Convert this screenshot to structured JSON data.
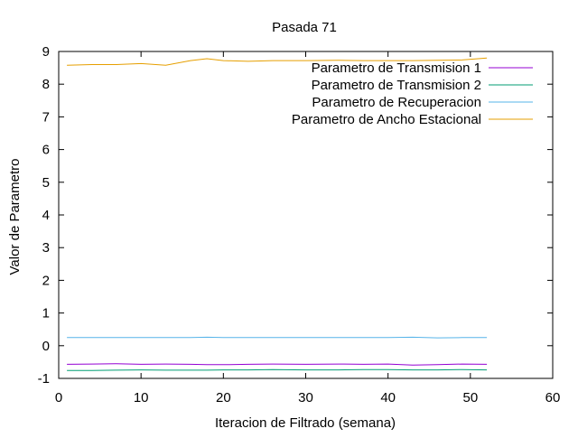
{
  "chart_data": {
    "type": "line",
    "title": "Pasada 71",
    "xlabel": "Iteracion de Filtrado (semana)",
    "ylabel": "Valor de Parametro",
    "xlim": [
      0,
      60
    ],
    "ylim": [
      -1,
      9
    ],
    "xticks": [
      0,
      10,
      20,
      30,
      40,
      50,
      60
    ],
    "yticks": [
      -1,
      0,
      1,
      2,
      3,
      4,
      5,
      6,
      7,
      8,
      9
    ],
    "grid": false,
    "legend_position": "top-right",
    "x": [
      1,
      4,
      7,
      10,
      13,
      16,
      18,
      20,
      23,
      26,
      30,
      34,
      37,
      40,
      43,
      46,
      49,
      52
    ],
    "series": [
      {
        "name": "Parametro de Transmision 1",
        "color": "#9400d3",
        "values": [
          -0.57,
          -0.56,
          -0.55,
          -0.57,
          -0.56,
          -0.57,
          -0.58,
          -0.58,
          -0.57,
          -0.56,
          -0.57,
          -0.56,
          -0.57,
          -0.56,
          -0.59,
          -0.58,
          -0.56,
          -0.57
        ]
      },
      {
        "name": "Parametro de Transmision 2",
        "color": "#009e73",
        "values": [
          -0.76,
          -0.76,
          -0.75,
          -0.74,
          -0.75,
          -0.75,
          -0.75,
          -0.74,
          -0.74,
          -0.73,
          -0.74,
          -0.74,
          -0.73,
          -0.73,
          -0.74,
          -0.74,
          -0.73,
          -0.74
        ]
      },
      {
        "name": "Parametro de Recuperacion",
        "color": "#56b4e9",
        "values": [
          0.25,
          0.25,
          0.25,
          0.25,
          0.25,
          0.25,
          0.26,
          0.25,
          0.25,
          0.25,
          0.25,
          0.25,
          0.25,
          0.25,
          0.26,
          0.24,
          0.25,
          0.25
        ]
      },
      {
        "name": "Parametro de Ancho Estacional",
        "color": "#e69f00",
        "values": [
          8.58,
          8.6,
          8.6,
          8.63,
          8.58,
          8.72,
          8.78,
          8.72,
          8.7,
          8.72,
          8.72,
          8.73,
          8.72,
          8.72,
          8.72,
          8.73,
          8.74,
          8.8
        ]
      }
    ]
  }
}
